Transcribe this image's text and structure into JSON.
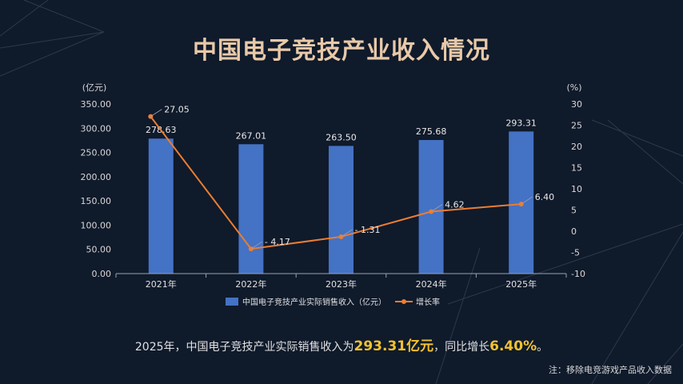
{
  "title": "中国电子竞技产业收入情况",
  "summary": {
    "prefix": "2025年，中国电子竞技产业实际销售收入为",
    "value": "293.31亿元",
    "mid": "，同比增长",
    "growth": "6.40%",
    "suffix": "。"
  },
  "note": "注：移除电竞游戏产品收入数据",
  "colors": {
    "bar": "#4472c4",
    "line": "#ed7d31",
    "background": "#0f1a2b",
    "title": "#e8c9a8",
    "highlight": "#f2c230"
  },
  "chart_data": {
    "type": "bar",
    "categories": [
      "2021年",
      "2022年",
      "2023年",
      "2024年",
      "2025年"
    ],
    "series": [
      {
        "name": "中国电子竞技产业实际销售收入（亿元）",
        "type": "bar",
        "axis": "left",
        "values": [
          278.63,
          267.01,
          263.5,
          275.68,
          293.31
        ],
        "labels": [
          "278.63",
          "267.01",
          "263.50",
          "275.68",
          "293.31"
        ]
      },
      {
        "name": "增长率",
        "type": "line",
        "axis": "right",
        "values": [
          27.05,
          -4.17,
          -1.31,
          4.62,
          6.4
        ],
        "labels": [
          "27.05",
          "- 4.17",
          "- 1.31",
          "4.62",
          "6.40"
        ]
      }
    ],
    "y_left": {
      "unit": "(亿元)",
      "ylim": [
        0,
        350
      ],
      "ticks": [
        "0.00",
        "50.00",
        "100.00",
        "150.00",
        "200.00",
        "250.00",
        "300.00",
        "350.00"
      ]
    },
    "y_right": {
      "unit": "(%)",
      "ylim": [
        -10,
        30
      ],
      "ticks": [
        "-10",
        "-5",
        "0",
        "5",
        "10",
        "15",
        "20",
        "25",
        "30"
      ]
    },
    "legend_position": "bottom",
    "grid": false
  }
}
